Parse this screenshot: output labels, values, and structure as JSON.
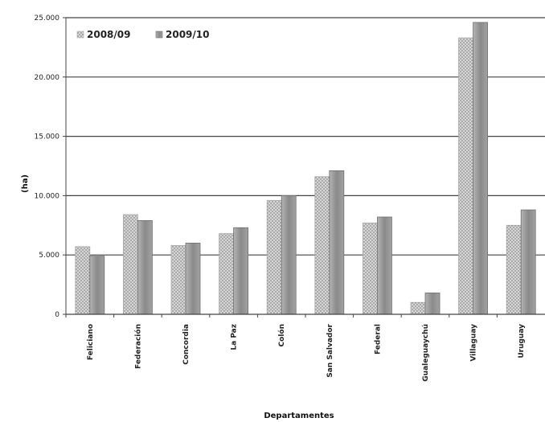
{
  "chart_data": {
    "type": "bar",
    "title": "",
    "xlabel": "Departamentes",
    "ylabel": "(ha)",
    "ylim": [
      0,
      25000
    ],
    "yticks": [
      0,
      5000,
      10000,
      15000,
      20000,
      25000
    ],
    "ytick_labels": [
      "0",
      "5.000",
      "10.000",
      "15.000",
      "20.000",
      "25.000"
    ],
    "grid": true,
    "legend_position": "top-left",
    "categories": [
      "Feliciano",
      "Federación",
      "Concordia",
      "La Paz",
      "Colón",
      "San Salvador",
      "Federal",
      "Gualeguaychú",
      "Villaguay",
      "Uruguay"
    ],
    "series": [
      {
        "name": "2008/09",
        "values": [
          5700,
          8400,
          5800,
          6800,
          9600,
          11600,
          7700,
          1000,
          23300,
          7500
        ],
        "color": "#c8c8c8",
        "pattern": "dotted"
      },
      {
        "name": "2009/10",
        "values": [
          4900,
          7900,
          6000,
          7300,
          10000,
          12100,
          8200,
          1800,
          24600,
          8800
        ],
        "color": "#9a9a9a",
        "pattern": "solid"
      }
    ]
  }
}
